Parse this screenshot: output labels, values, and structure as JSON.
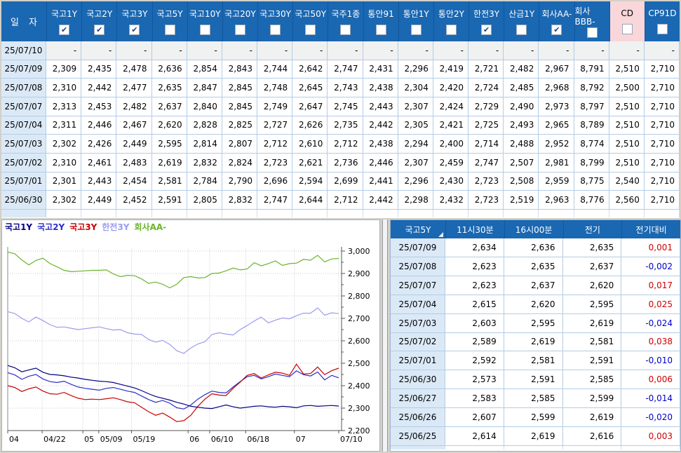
{
  "colors": {
    "header_blue": "#1a67b2",
    "grid_blue": "#b3cce6",
    "date_col_bg": "#dbe9f7",
    "highlight_pink": "#f9d6da",
    "change_up": "#d00000",
    "change_down": "#0000c8"
  },
  "main_table": {
    "date_header": "일  자",
    "columns": [
      {
        "label": "국고1Y",
        "checked": true,
        "highlighted": false
      },
      {
        "label": "국고2Y",
        "checked": true,
        "highlighted": false
      },
      {
        "label": "국고3Y",
        "checked": true,
        "highlighted": false
      },
      {
        "label": "국고5Y",
        "checked": false,
        "highlighted": false
      },
      {
        "label": "국고10Y",
        "checked": false,
        "highlighted": false
      },
      {
        "label": "국고20Y",
        "checked": false,
        "highlighted": false
      },
      {
        "label": "국고30Y",
        "checked": false,
        "highlighted": false
      },
      {
        "label": "국고50Y",
        "checked": false,
        "highlighted": false
      },
      {
        "label": "국주1종",
        "checked": false,
        "highlighted": false
      },
      {
        "label": "통안91",
        "checked": false,
        "highlighted": false
      },
      {
        "label": "통안1Y",
        "checked": false,
        "highlighted": false
      },
      {
        "label": "통안2Y",
        "checked": false,
        "highlighted": false
      },
      {
        "label": "한전3Y",
        "checked": true,
        "highlighted": false
      },
      {
        "label": "산금1Y",
        "checked": false,
        "highlighted": false
      },
      {
        "label": "회사AA-",
        "checked": true,
        "highlighted": false
      },
      {
        "label": "회사BBB-",
        "checked": false,
        "highlighted": false
      },
      {
        "label": "CD",
        "checked": false,
        "highlighted": true
      },
      {
        "label": "CP91D",
        "checked": false,
        "highlighted": false
      }
    ],
    "rows": [
      {
        "date": "25/07/10",
        "values": [
          "-",
          "-",
          "-",
          "-",
          "-",
          "-",
          "-",
          "-",
          "-",
          "-",
          "-",
          "-",
          "-",
          "-",
          "-",
          "-",
          "-",
          "-"
        ]
      },
      {
        "date": "25/07/09",
        "values": [
          "2,309",
          "2,435",
          "2,478",
          "2,636",
          "2,854",
          "2,843",
          "2,744",
          "2,642",
          "2,747",
          "2,431",
          "2,296",
          "2,419",
          "2,721",
          "2,482",
          "2,967",
          "8,791",
          "2,510",
          "2,710"
        ]
      },
      {
        "date": "25/07/08",
        "values": [
          "2,310",
          "2,442",
          "2,477",
          "2,635",
          "2,847",
          "2,845",
          "2,748",
          "2,645",
          "2,743",
          "2,438",
          "2,304",
          "2,420",
          "2,724",
          "2,485",
          "2,968",
          "8,792",
          "2,500",
          "2,710"
        ]
      },
      {
        "date": "25/07/07",
        "values": [
          "2,313",
          "2,453",
          "2,482",
          "2,637",
          "2,840",
          "2,845",
          "2,749",
          "2,647",
          "2,745",
          "2,443",
          "2,307",
          "2,424",
          "2,729",
          "2,490",
          "2,973",
          "8,797",
          "2,510",
          "2,710"
        ]
      },
      {
        "date": "25/07/04",
        "values": [
          "2,311",
          "2,446",
          "2,467",
          "2,620",
          "2,828",
          "2,825",
          "2,727",
          "2,626",
          "2,735",
          "2,442",
          "2,305",
          "2,421",
          "2,725",
          "2,493",
          "2,965",
          "8,789",
          "2,510",
          "2,710"
        ]
      },
      {
        "date": "25/07/03",
        "values": [
          "2,302",
          "2,426",
          "2,449",
          "2,595",
          "2,814",
          "2,807",
          "2,712",
          "2,610",
          "2,712",
          "2,438",
          "2,294",
          "2,400",
          "2,714",
          "2,488",
          "2,952",
          "8,774",
          "2,510",
          "2,710"
        ]
      },
      {
        "date": "25/07/02",
        "values": [
          "2,310",
          "2,461",
          "2,483",
          "2,619",
          "2,832",
          "2,824",
          "2,723",
          "2,621",
          "2,736",
          "2,446",
          "2,307",
          "2,459",
          "2,747",
          "2,507",
          "2,981",
          "8,799",
          "2,510",
          "2,710"
        ]
      },
      {
        "date": "25/07/01",
        "values": [
          "2,301",
          "2,443",
          "2,454",
          "2,581",
          "2,784",
          "2,790",
          "2,696",
          "2,594",
          "2,699",
          "2,441",
          "2,296",
          "2,430",
          "2,723",
          "2,508",
          "2,959",
          "8,775",
          "2,540",
          "2,710"
        ]
      },
      {
        "date": "25/06/30",
        "values": [
          "2,302",
          "2,449",
          "2,452",
          "2,591",
          "2,805",
          "2,832",
          "2,747",
          "2,644",
          "2,712",
          "2,442",
          "2,298",
          "2,432",
          "2,723",
          "2,519",
          "2,963",
          "8,776",
          "2,560",
          "2,710"
        ]
      }
    ]
  },
  "chart_data": {
    "type": "line",
    "title": "",
    "xlabel": "",
    "ylabel": "",
    "ylim": [
      2.2,
      3.0
    ],
    "grid": true,
    "legend_position": "top-left",
    "y_ticks": [
      {
        "label": "3,000",
        "value": 3.0
      },
      {
        "label": "2,900",
        "value": 2.9
      },
      {
        "label": "2,800",
        "value": 2.8
      },
      {
        "label": "2,700",
        "value": 2.7
      },
      {
        "label": "2,600",
        "value": 2.6
      },
      {
        "label": "2,500",
        "value": 2.5
      },
      {
        "label": "2,400",
        "value": 2.4
      },
      {
        "label": "2,300",
        "value": 2.3
      },
      {
        "label": "2,200",
        "value": 2.2
      }
    ],
    "x_ticks": [
      {
        "label": "04",
        "pos": 0.0
      },
      {
        "label": "04/22",
        "pos": 0.104
      },
      {
        "label": "05",
        "pos": 0.227
      },
      {
        "label": "05/09",
        "pos": 0.275
      },
      {
        "label": "05/19",
        "pos": 0.374
      },
      {
        "label": "06",
        "pos": 0.545
      },
      {
        "label": "06/10",
        "pos": 0.61
      },
      {
        "label": "06/18",
        "pos": 0.719
      },
      {
        "label": "07",
        "pos": 0.866
      },
      {
        "label": "07/10",
        "pos": 1.0
      }
    ],
    "series": [
      {
        "name": "회사AA-",
        "color": "#6cb32b",
        "values": [
          2.995,
          2.988,
          2.96,
          2.938,
          2.958,
          2.968,
          2.944,
          2.93,
          2.914,
          2.908,
          2.91,
          2.912,
          2.914,
          2.914,
          2.916,
          2.898,
          2.886,
          2.892,
          2.89,
          2.876,
          2.856,
          2.862,
          2.852,
          2.836,
          2.852,
          2.882,
          2.886,
          2.88,
          2.882,
          2.9,
          2.902,
          2.912,
          2.924,
          2.916,
          2.92,
          2.948,
          2.934,
          2.944,
          2.956,
          2.936,
          2.944,
          2.946,
          2.963,
          2.959,
          2.981,
          2.952,
          2.965,
          2.967
        ]
      },
      {
        "name": "한전3Y",
        "color": "#9b9bf0",
        "values": [
          2.73,
          2.722,
          2.7,
          2.684,
          2.706,
          2.69,
          2.672,
          2.66,
          2.662,
          2.656,
          2.65,
          2.654,
          2.658,
          2.662,
          2.654,
          2.648,
          2.65,
          2.636,
          2.63,
          2.628,
          2.606,
          2.594,
          2.602,
          2.584,
          2.556,
          2.544,
          2.568,
          2.586,
          2.596,
          2.628,
          2.636,
          2.63,
          2.626,
          2.65,
          2.668,
          2.688,
          2.706,
          2.68,
          2.692,
          2.702,
          2.698,
          2.712,
          2.723,
          2.723,
          2.747,
          2.714,
          2.725,
          2.721
        ]
      },
      {
        "name": "국고2Y",
        "color": "#2d2dcc",
        "values": [
          2.458,
          2.448,
          2.428,
          2.442,
          2.45,
          2.43,
          2.418,
          2.414,
          2.42,
          2.406,
          2.394,
          2.388,
          2.384,
          2.38,
          2.388,
          2.392,
          2.384,
          2.376,
          2.37,
          2.354,
          2.338,
          2.326,
          2.334,
          2.322,
          2.302,
          2.296,
          2.314,
          2.34,
          2.36,
          2.376,
          2.37,
          2.368,
          2.394,
          2.418,
          2.44,
          2.446,
          2.43,
          2.44,
          2.452,
          2.446,
          2.44,
          2.466,
          2.449,
          2.443,
          2.461,
          2.426,
          2.446,
          2.435
        ]
      },
      {
        "name": "국고3Y",
        "color": "#c80000",
        "values": [
          2.4,
          2.392,
          2.374,
          2.386,
          2.394,
          2.376,
          2.364,
          2.362,
          2.37,
          2.356,
          2.344,
          2.338,
          2.34,
          2.338,
          2.342,
          2.346,
          2.338,
          2.328,
          2.324,
          2.304,
          2.284,
          2.268,
          2.278,
          2.26,
          2.24,
          2.244,
          2.268,
          2.308,
          2.34,
          2.364,
          2.358,
          2.356,
          2.388,
          2.416,
          2.446,
          2.454,
          2.434,
          2.448,
          2.46,
          2.456,
          2.446,
          2.496,
          2.452,
          2.454,
          2.483,
          2.449,
          2.467,
          2.478
        ]
      },
      {
        "name": "국고1Y",
        "color": "#000082",
        "values": [
          2.49,
          2.48,
          2.462,
          2.47,
          2.478,
          2.46,
          2.45,
          2.448,
          2.444,
          2.438,
          2.434,
          2.428,
          2.424,
          2.42,
          2.418,
          2.414,
          2.406,
          2.398,
          2.39,
          2.378,
          2.364,
          2.352,
          2.344,
          2.336,
          2.326,
          2.318,
          2.308,
          2.304,
          2.3,
          2.298,
          2.306,
          2.314,
          2.306,
          2.3,
          2.304,
          2.308,
          2.31,
          2.306,
          2.304,
          2.308,
          2.306,
          2.302,
          2.31,
          2.312,
          2.308,
          2.31,
          2.312,
          2.309
        ]
      }
    ],
    "legend_order": [
      "국고1Y",
      "국고2Y",
      "국고3Y",
      "한전3Y",
      "회사AA-"
    ]
  },
  "right_table": {
    "headers": [
      "국고5Y",
      "11시30분",
      "16시00분",
      "전기",
      "전기대비"
    ],
    "rows": [
      {
        "date": "25/07/09",
        "t1130": "2,634",
        "t1600": "2,636",
        "prev": "2,635",
        "change": "0,001",
        "direction": "up"
      },
      {
        "date": "25/07/08",
        "t1130": "2,623",
        "t1600": "2,635",
        "prev": "2,637",
        "change": "-0,002",
        "direction": "down"
      },
      {
        "date": "25/07/07",
        "t1130": "2,623",
        "t1600": "2,637",
        "prev": "2,620",
        "change": "0,017",
        "direction": "up"
      },
      {
        "date": "25/07/04",
        "t1130": "2,615",
        "t1600": "2,620",
        "prev": "2,595",
        "change": "0,025",
        "direction": "up"
      },
      {
        "date": "25/07/03",
        "t1130": "2,603",
        "t1600": "2,595",
        "prev": "2,619",
        "change": "-0,024",
        "direction": "down"
      },
      {
        "date": "25/07/02",
        "t1130": "2,589",
        "t1600": "2,619",
        "prev": "2,581",
        "change": "0,038",
        "direction": "up"
      },
      {
        "date": "25/07/01",
        "t1130": "2,592",
        "t1600": "2,581",
        "prev": "2,591",
        "change": "-0,010",
        "direction": "down"
      },
      {
        "date": "25/06/30",
        "t1130": "2,573",
        "t1600": "2,591",
        "prev": "2,585",
        "change": "0,006",
        "direction": "up"
      },
      {
        "date": "25/06/27",
        "t1130": "2,583",
        "t1600": "2,585",
        "prev": "2,599",
        "change": "-0,014",
        "direction": "down"
      },
      {
        "date": "25/06/26",
        "t1130": "2,607",
        "t1600": "2,599",
        "prev": "2,619",
        "change": "-0,020",
        "direction": "down"
      },
      {
        "date": "25/06/25",
        "t1130": "2,614",
        "t1600": "2,619",
        "prev": "2,616",
        "change": "0,003",
        "direction": "up"
      }
    ]
  }
}
